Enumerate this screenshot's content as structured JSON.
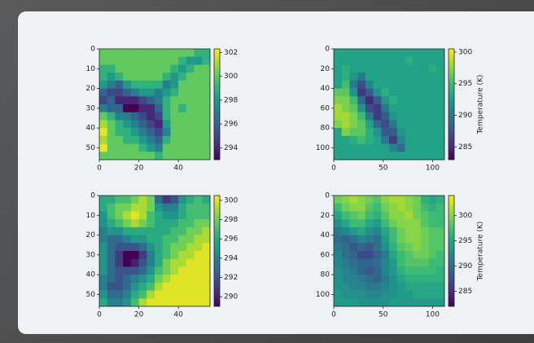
{
  "chart_data": [
    {
      "type": "heatmap",
      "colormap": "viridis",
      "xlim": [
        0,
        56
      ],
      "ylim": [
        56,
        0
      ],
      "xticks": [
        0,
        20,
        40
      ],
      "yticks": [
        0,
        10,
        20,
        30,
        40,
        50
      ],
      "zlim": [
        293,
        302.3
      ],
      "zticks": [
        294,
        296,
        298,
        300,
        302
      ],
      "z": [
        [
          300,
          300,
          300,
          300,
          300,
          300,
          300,
          300,
          300,
          300,
          300,
          300,
          299,
          299
        ],
        [
          300,
          300,
          300,
          300,
          300,
          300,
          300,
          300,
          300,
          300,
          299,
          298,
          298,
          299
        ],
        [
          299,
          299,
          300,
          300,
          300,
          300,
          300,
          300,
          300,
          299,
          298,
          299,
          300,
          300
        ],
        [
          299,
          298,
          299,
          300,
          300,
          300,
          300,
          300,
          299,
          298,
          299,
          300,
          300,
          300
        ],
        [
          298,
          297,
          296,
          298,
          299,
          299,
          299,
          299,
          297,
          298,
          300,
          300,
          300,
          300
        ],
        [
          296,
          295,
          295,
          296,
          297,
          298,
          298,
          297,
          298,
          299,
          300,
          300,
          300,
          300
        ],
        [
          295,
          296,
          294,
          294,
          294,
          295,
          296,
          297,
          299,
          300,
          300,
          300,
          300,
          300
        ],
        [
          297,
          296,
          296,
          293,
          293,
          294,
          294,
          296,
          299,
          300,
          299,
          300,
          300,
          300
        ],
        [
          300,
          299,
          297,
          297,
          296,
          295,
          294,
          295,
          299,
          300,
          300,
          300,
          300,
          300
        ],
        [
          301,
          300,
          299,
          298,
          297,
          296,
          295,
          294,
          298,
          300,
          300,
          300,
          300,
          300
        ],
        [
          302,
          300,
          299,
          299,
          298,
          297,
          296,
          295,
          297,
          300,
          300,
          300,
          300,
          300
        ],
        [
          301,
          300,
          300,
          299,
          299,
          298,
          297,
          296,
          299,
          300,
          300,
          300,
          300,
          300
        ],
        [
          302,
          300,
          300,
          300,
          300,
          299,
          298,
          297,
          300,
          300,
          300,
          300,
          300,
          300
        ],
        [
          300,
          300,
          300,
          300,
          300,
          300,
          300,
          299,
          300,
          300,
          300,
          300,
          300,
          300
        ]
      ]
    },
    {
      "type": "heatmap",
      "colormap": "viridis",
      "xlim": [
        0,
        112
      ],
      "ylim": [
        112,
        0
      ],
      "xticks": [
        0,
        50,
        100
      ],
      "yticks": [
        0,
        20,
        40,
        60,
        80,
        100
      ],
      "zlim": [
        283,
        300.5
      ],
      "zticks": [
        285,
        290,
        295,
        300
      ],
      "colorbar_label": "Temperature (K)",
      "z": [
        [
          293,
          293,
          293,
          293,
          293,
          293,
          293,
          293,
          293,
          293,
          293,
          293,
          293,
          293
        ],
        [
          293,
          293,
          293,
          293,
          293,
          293,
          293,
          293,
          293,
          294,
          293,
          293,
          293,
          293
        ],
        [
          293,
          294,
          293,
          293,
          293,
          293,
          293,
          293,
          293,
          293,
          293,
          293,
          294,
          293
        ],
        [
          293,
          294,
          292,
          290,
          293,
          293,
          293,
          293,
          293,
          293,
          293,
          293,
          293,
          293
        ],
        [
          293,
          295,
          290,
          287,
          291,
          293,
          293,
          293,
          293,
          293,
          293,
          293,
          293,
          293
        ],
        [
          296,
          296,
          292,
          286,
          288,
          292,
          294,
          293,
          293,
          293,
          293,
          293,
          293,
          293
        ],
        [
          297,
          297,
          295,
          289,
          285,
          288,
          292,
          294,
          293,
          293,
          293,
          293,
          293,
          293
        ],
        [
          298,
          297,
          296,
          292,
          287,
          286,
          290,
          293,
          293,
          293,
          293,
          293,
          293,
          293
        ],
        [
          298,
          298,
          297,
          295,
          290,
          286,
          288,
          292,
          293,
          293,
          293,
          293,
          293,
          293
        ],
        [
          297,
          298,
          297,
          296,
          293,
          289,
          287,
          290,
          293,
          293,
          293,
          293,
          293,
          293
        ],
        [
          293,
          297,
          296,
          296,
          294,
          292,
          288,
          288,
          292,
          293,
          293,
          293,
          293,
          293
        ],
        [
          293,
          293,
          294,
          295,
          294,
          293,
          290,
          286,
          291,
          293,
          293,
          293,
          293,
          293
        ],
        [
          293,
          293,
          293,
          293,
          293,
          293,
          293,
          291,
          289,
          293,
          293,
          293,
          293,
          293
        ],
        [
          293,
          293,
          293,
          293,
          293,
          293,
          293,
          293,
          293,
          293,
          293,
          293,
          293,
          293
        ]
      ]
    },
    {
      "type": "heatmap",
      "colormap": "viridis",
      "xlim": [
        0,
        56
      ],
      "ylim": [
        56,
        0
      ],
      "xticks": [
        0,
        20,
        40
      ],
      "yticks": [
        0,
        10,
        20,
        30,
        40,
        50
      ],
      "zlim": [
        289,
        300.5
      ],
      "zticks": [
        290,
        292,
        294,
        296,
        298,
        300
      ],
      "z": [
        [
          296,
          296,
          297,
          297,
          298,
          299,
          298,
          293,
          291,
          292,
          295,
          296,
          297,
          296
        ],
        [
          296,
          297,
          298,
          298,
          299,
          299,
          298,
          295,
          294,
          294,
          296,
          297,
          297,
          297
        ],
        [
          295,
          297,
          298,
          299,
          300,
          299,
          297,
          296,
          295,
          295,
          296,
          297,
          297,
          297
        ],
        [
          295,
          296,
          297,
          298,
          299,
          298,
          297,
          296,
          296,
          296,
          297,
          297,
          298,
          298
        ],
        [
          294,
          295,
          295,
          296,
          296,
          296,
          296,
          296,
          296,
          297,
          297,
          298,
          298,
          299
        ],
        [
          294,
          293,
          293,
          294,
          295,
          295,
          296,
          296,
          297,
          297,
          298,
          298,
          299,
          299
        ],
        [
          295,
          293,
          292,
          292,
          292,
          293,
          295,
          296,
          297,
          298,
          298,
          299,
          299,
          300
        ],
        [
          295,
          293,
          291,
          289,
          289,
          291,
          294,
          296,
          297,
          298,
          299,
          299,
          300,
          300
        ],
        [
          295,
          293,
          291,
          289,
          290,
          292,
          294,
          296,
          298,
          299,
          299,
          300,
          300,
          300
        ],
        [
          295,
          293,
          292,
          292,
          292,
          293,
          295,
          297,
          298,
          299,
          300,
          300,
          300,
          300
        ],
        [
          294,
          293,
          292,
          293,
          294,
          295,
          296,
          298,
          299,
          300,
          300,
          300,
          300,
          300
        ],
        [
          294,
          292,
          292,
          293,
          295,
          296,
          297,
          299,
          300,
          300,
          300,
          300,
          300,
          300
        ],
        [
          295,
          293,
          293,
          294,
          296,
          297,
          299,
          300,
          300,
          300,
          300,
          300,
          300,
          300
        ],
        [
          296,
          294,
          294,
          295,
          297,
          299,
          300,
          300,
          300,
          300,
          300,
          300,
          300,
          300
        ]
      ]
    },
    {
      "type": "heatmap",
      "colormap": "viridis",
      "xlim": [
        0,
        112
      ],
      "ylim": [
        112,
        0
      ],
      "xticks": [
        0,
        50,
        100
      ],
      "yticks": [
        0,
        20,
        40,
        60,
        80,
        100
      ],
      "zlim": [
        282,
        304
      ],
      "zticks": [
        285,
        290,
        295,
        300
      ],
      "colorbar_label": "Temperature (K)",
      "z": [
        [
          299,
          300,
          301,
          300,
          299,
          298,
          300,
          301,
          301,
          300,
          299,
          296,
          295,
          296
        ],
        [
          297,
          299,
          300,
          300,
          298,
          297,
          299,
          300,
          301,
          300,
          299,
          297,
          296,
          297
        ],
        [
          295,
          297,
          298,
          299,
          297,
          296,
          298,
          300,
          300,
          301,
          299,
          298,
          297,
          297
        ],
        [
          293,
          295,
          297,
          297,
          295,
          294,
          297,
          299,
          300,
          300,
          300,
          298,
          297,
          297
        ],
        [
          291,
          292,
          294,
          295,
          293,
          292,
          295,
          297,
          299,
          300,
          300,
          299,
          298,
          298
        ],
        [
          290,
          289,
          290,
          292,
          291,
          290,
          294,
          297,
          299,
          300,
          300,
          299,
          298,
          298
        ],
        [
          291,
          290,
          288,
          289,
          288,
          290,
          293,
          296,
          298,
          299,
          300,
          299,
          298,
          298
        ],
        [
          292,
          290,
          289,
          287,
          287,
          289,
          291,
          295,
          297,
          298,
          299,
          299,
          298,
          297
        ],
        [
          292,
          291,
          290,
          289,
          289,
          290,
          292,
          294,
          297,
          298,
          298,
          298,
          297,
          297
        ],
        [
          293,
          292,
          291,
          289,
          288,
          289,
          292,
          294,
          296,
          297,
          297,
          297,
          297,
          296
        ],
        [
          293,
          292,
          292,
          291,
          290,
          289,
          291,
          293,
          295,
          296,
          296,
          296,
          296,
          296
        ],
        [
          293,
          293,
          292,
          292,
          291,
          291,
          292,
          293,
          294,
          295,
          295,
          295,
          295,
          295
        ],
        [
          294,
          293,
          293,
          293,
          292,
          292,
          293,
          293,
          294,
          294,
          295,
          295,
          295,
          295
        ],
        [
          294,
          294,
          294,
          293,
          293,
          293,
          293,
          294,
          294,
          294,
          294,
          294,
          294,
          294
        ]
      ]
    }
  ]
}
